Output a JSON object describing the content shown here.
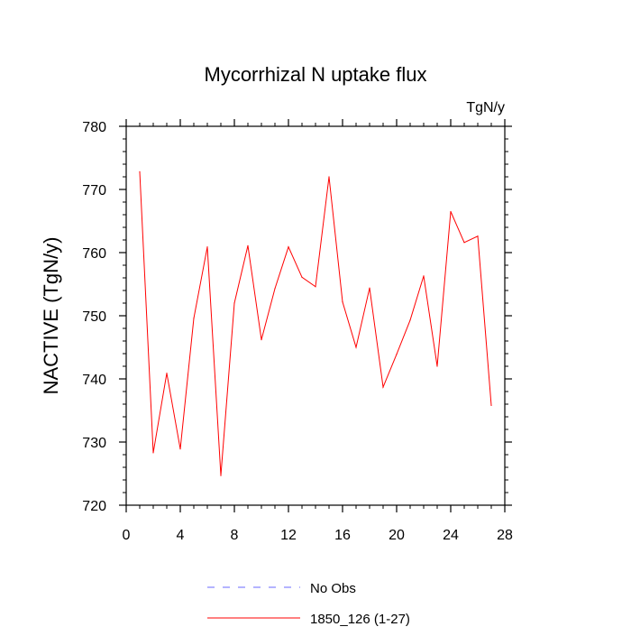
{
  "chart_data": {
    "type": "line",
    "title": "Mycorrhizal N uptake flux",
    "units": "TgN/y",
    "xlabel": "",
    "ylabel": "NACTIVE  (TgN/y)",
    "xlim": [
      0,
      28
    ],
    "ylim": [
      720,
      780
    ],
    "x_ticks": [
      0,
      4,
      8,
      12,
      16,
      20,
      24,
      28
    ],
    "y_ticks": [
      720,
      730,
      740,
      750,
      760,
      770,
      780
    ],
    "grid": false,
    "legend": {
      "placement": "bottom",
      "entries": [
        {
          "label": "No Obs",
          "color": "#6a6aff",
          "style": "dashed"
        },
        {
          "label": "1850_126 (1-27)",
          "color": "#ff0000",
          "style": "solid"
        }
      ]
    },
    "series": [
      {
        "name": "1850_126 (1-27)",
        "color": "#ff0000",
        "x": [
          1,
          2,
          3,
          4,
          5,
          6,
          7,
          8,
          9,
          10,
          11,
          12,
          13,
          14,
          15,
          16,
          17,
          18,
          19,
          20,
          21,
          22,
          23,
          24,
          25,
          26,
          27
        ],
        "values": [
          772.8,
          728.3,
          740.9,
          728.9,
          749.6,
          760.9,
          724.7,
          752.0,
          761.1,
          746.2,
          754.3,
          760.9,
          756.1,
          754.6,
          772.0,
          752.2,
          745.0,
          754.4,
          738.7,
          743.9,
          749.3,
          756.3,
          742.0,
          766.5,
          761.6,
          762.6,
          735.8
        ]
      }
    ]
  }
}
